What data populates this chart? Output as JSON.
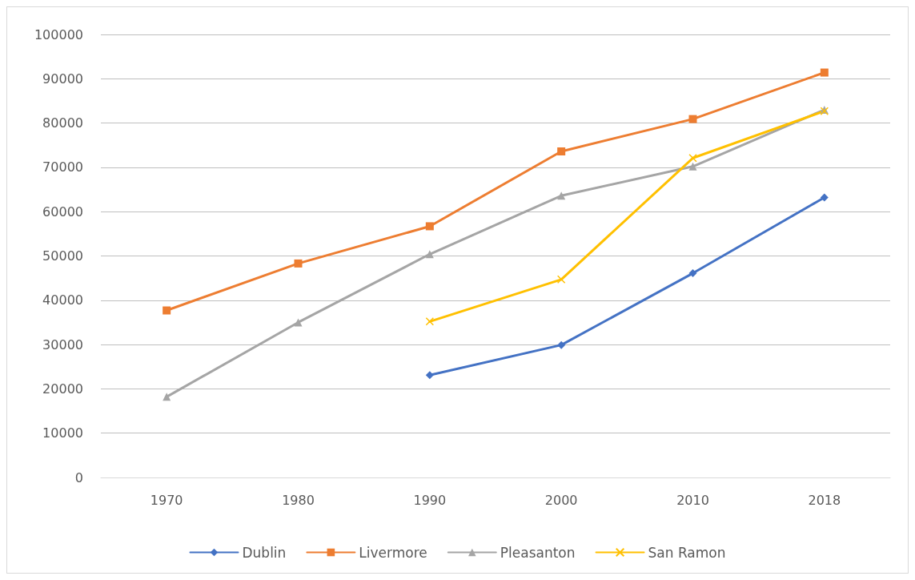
{
  "chart_data": {
    "type": "line",
    "categories": [
      "1970",
      "1980",
      "1990",
      "2000",
      "2010",
      "2018"
    ],
    "series": [
      {
        "name": "Dublin",
        "color": "#4472c4",
        "marker": "diamond",
        "values": [
          null,
          null,
          23100,
          29900,
          46100,
          63200
        ]
      },
      {
        "name": "Livermore",
        "color": "#ed7d31",
        "marker": "square",
        "values": [
          37700,
          48300,
          56700,
          73600,
          80900,
          91400
        ]
      },
      {
        "name": "Pleasanton",
        "color": "#a5a5a5",
        "marker": "triangle",
        "values": [
          18200,
          35000,
          50400,
          63600,
          70200,
          83000
        ]
      },
      {
        "name": "San Ramon",
        "color": "#ffc000",
        "marker": "cross",
        "values": [
          null,
          null,
          35200,
          44700,
          72100,
          82700
        ]
      }
    ],
    "ylim": [
      0,
      100000
    ],
    "yticks": [
      0,
      10000,
      20000,
      30000,
      40000,
      50000,
      60000,
      70000,
      80000,
      90000,
      100000
    ],
    "grid": "y",
    "legend": "bottom",
    "line_style": "solid"
  }
}
